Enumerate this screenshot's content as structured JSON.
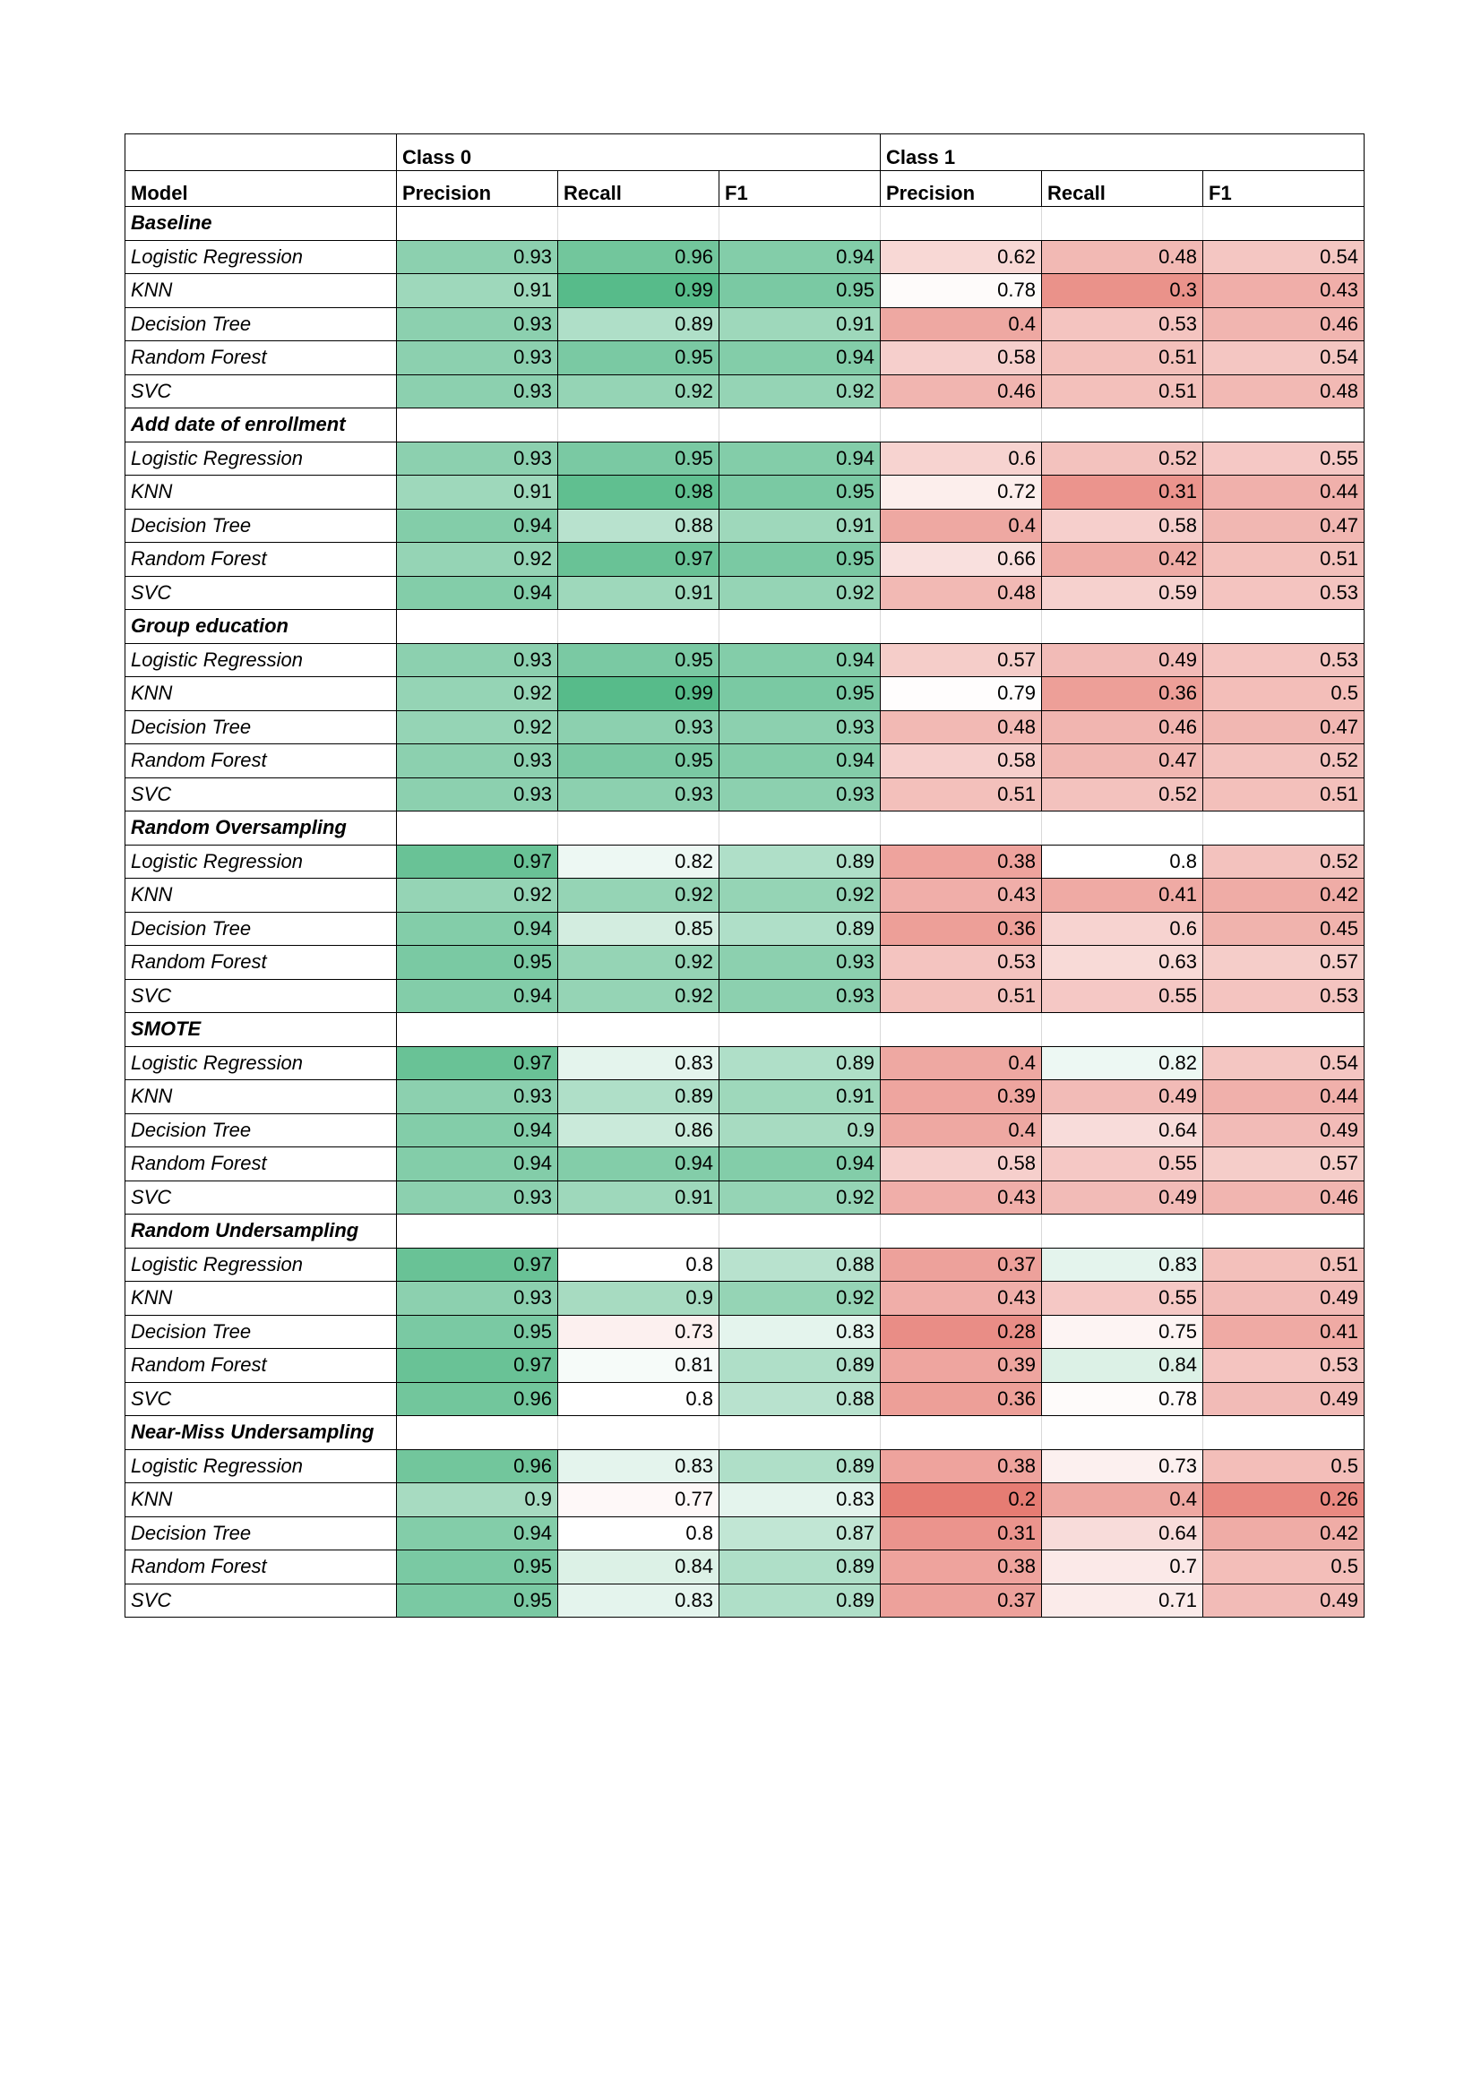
{
  "table": {
    "group_headers": {
      "model_blank": "",
      "class0": "Class 0",
      "class1": "Class 1"
    },
    "column_headers": [
      "Model",
      "Precision",
      "Recall",
      "F1",
      "Precision",
      "Recall",
      "F1"
    ],
    "sections": [
      {
        "name": "Baseline",
        "rows": [
          {
            "model": "Logistic Regression",
            "values": [
              0.93,
              0.96,
              0.94,
              0.62,
              0.48,
              0.54
            ]
          },
          {
            "model": "KNN",
            "values": [
              0.91,
              0.99,
              0.95,
              0.78,
              0.3,
              0.43
            ]
          },
          {
            "model": "Decision Tree",
            "values": [
              0.93,
              0.89,
              0.91,
              0.4,
              0.53,
              0.46
            ]
          },
          {
            "model": "Random Forest",
            "values": [
              0.93,
              0.95,
              0.94,
              0.58,
              0.51,
              0.54
            ]
          },
          {
            "model": "SVC",
            "values": [
              0.93,
              0.92,
              0.92,
              0.46,
              0.51,
              0.48
            ]
          }
        ]
      },
      {
        "name": "Add date of enrollment",
        "rows": [
          {
            "model": "Logistic Regression",
            "values": [
              0.93,
              0.95,
              0.94,
              0.6,
              0.52,
              0.55
            ]
          },
          {
            "model": "KNN",
            "values": [
              0.91,
              0.98,
              0.95,
              0.72,
              0.31,
              0.44
            ]
          },
          {
            "model": "Decision Tree",
            "values": [
              0.94,
              0.88,
              0.91,
              0.4,
              0.58,
              0.47
            ]
          },
          {
            "model": "Random Forest",
            "values": [
              0.92,
              0.97,
              0.95,
              0.66,
              0.42,
              0.51
            ]
          },
          {
            "model": "SVC",
            "values": [
              0.94,
              0.91,
              0.92,
              0.48,
              0.59,
              0.53
            ]
          }
        ]
      },
      {
        "name": "Group education",
        "rows": [
          {
            "model": "Logistic Regression",
            "values": [
              0.93,
              0.95,
              0.94,
              0.57,
              0.49,
              0.53
            ]
          },
          {
            "model": "KNN",
            "values": [
              0.92,
              0.99,
              0.95,
              0.79,
              0.36,
              0.5
            ]
          },
          {
            "model": "Decision Tree",
            "values": [
              0.92,
              0.93,
              0.93,
              0.48,
              0.46,
              0.47
            ]
          },
          {
            "model": "Random Forest",
            "values": [
              0.93,
              0.95,
              0.94,
              0.58,
              0.47,
              0.52
            ]
          },
          {
            "model": "SVC",
            "values": [
              0.93,
              0.93,
              0.93,
              0.51,
              0.52,
              0.51
            ]
          }
        ]
      },
      {
        "name": "Random Oversampling",
        "rows": [
          {
            "model": "Logistic Regression",
            "values": [
              0.97,
              0.82,
              0.89,
              0.38,
              0.8,
              0.52
            ]
          },
          {
            "model": "KNN",
            "values": [
              0.92,
              0.92,
              0.92,
              0.43,
              0.41,
              0.42
            ]
          },
          {
            "model": "Decision Tree",
            "values": [
              0.94,
              0.85,
              0.89,
              0.36,
              0.6,
              0.45
            ]
          },
          {
            "model": "Random Forest",
            "values": [
              0.95,
              0.92,
              0.93,
              0.53,
              0.63,
              0.57
            ]
          },
          {
            "model": "SVC",
            "values": [
              0.94,
              0.92,
              0.93,
              0.51,
              0.55,
              0.53
            ]
          }
        ]
      },
      {
        "name": "SMOTE",
        "rows": [
          {
            "model": "Logistic Regression",
            "values": [
              0.97,
              0.83,
              0.89,
              0.4,
              0.82,
              0.54
            ]
          },
          {
            "model": "KNN",
            "values": [
              0.93,
              0.89,
              0.91,
              0.39,
              0.49,
              0.44
            ]
          },
          {
            "model": "Decision Tree",
            "values": [
              0.94,
              0.86,
              0.9,
              0.4,
              0.64,
              0.49
            ]
          },
          {
            "model": "Random Forest",
            "values": [
              0.94,
              0.94,
              0.94,
              0.58,
              0.55,
              0.57
            ]
          },
          {
            "model": "SVC",
            "values": [
              0.93,
              0.91,
              0.92,
              0.43,
              0.49,
              0.46
            ]
          }
        ]
      },
      {
        "name": "Random Undersampling",
        "rows": [
          {
            "model": "Logistic Regression",
            "values": [
              0.97,
              0.8,
              0.88,
              0.37,
              0.83,
              0.51
            ]
          },
          {
            "model": "KNN",
            "values": [
              0.93,
              0.9,
              0.92,
              0.43,
              0.55,
              0.49
            ]
          },
          {
            "model": "Decision Tree",
            "values": [
              0.95,
              0.73,
              0.83,
              0.28,
              0.75,
              0.41
            ]
          },
          {
            "model": "Random Forest",
            "values": [
              0.97,
              0.81,
              0.89,
              0.39,
              0.84,
              0.53
            ]
          },
          {
            "model": "SVC",
            "values": [
              0.96,
              0.8,
              0.88,
              0.36,
              0.78,
              0.49
            ]
          }
        ]
      },
      {
        "name": "Near-Miss Undersampling",
        "rows": [
          {
            "model": "Logistic Regression",
            "values": [
              0.96,
              0.83,
              0.89,
              0.38,
              0.73,
              0.5
            ]
          },
          {
            "model": "KNN",
            "values": [
              0.9,
              0.77,
              0.83,
              0.2,
              0.4,
              0.26
            ]
          },
          {
            "model": "Decision Tree",
            "values": [
              0.94,
              0.8,
              0.87,
              0.31,
              0.64,
              0.42
            ]
          },
          {
            "model": "Random Forest",
            "values": [
              0.95,
              0.84,
              0.89,
              0.38,
              0.7,
              0.5
            ]
          },
          {
            "model": "SVC",
            "values": [
              0.95,
              0.83,
              0.89,
              0.37,
              0.71,
              0.49
            ]
          }
        ]
      }
    ]
  },
  "colors": {
    "scale_low": "#e67c73",
    "scale_mid": "#ffffff",
    "scale_high": "#57bb8a",
    "scale_min_value": 0.2,
    "scale_mid_value": 0.8,
    "scale_max_value": 0.99
  }
}
